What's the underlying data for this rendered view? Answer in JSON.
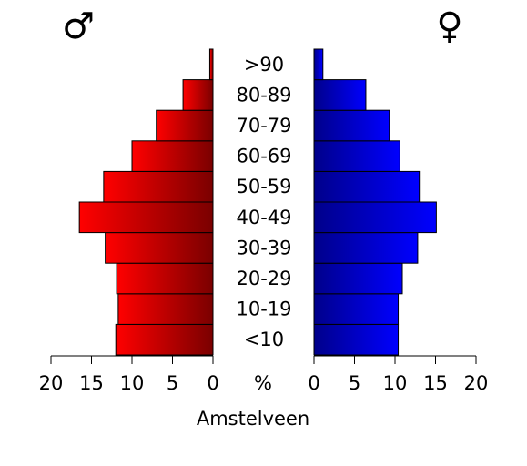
{
  "chart_data": {
    "type": "bar",
    "title": "Amstelveen",
    "xlabel": "%",
    "male_symbol": "♂",
    "female_symbol": "♀",
    "categories": [
      "<10",
      "10-19",
      "20-29",
      "30-39",
      "40-49",
      "50-59",
      "60-69",
      "70-79",
      "80-89",
      ">90"
    ],
    "series": [
      {
        "name": "♂",
        "values": [
          12.0,
          11.7,
          11.9,
          13.3,
          16.5,
          13.5,
          10.0,
          7.0,
          3.7,
          0.4
        ]
      },
      {
        "name": "♀",
        "values": [
          10.4,
          10.4,
          10.9,
          12.8,
          15.1,
          13.0,
          10.6,
          9.3,
          6.4,
          1.1
        ]
      }
    ],
    "xlim": [
      0,
      20
    ],
    "xticks": [
      "0",
      "5",
      "10",
      "15",
      "20"
    ],
    "colors": {
      "male_light": "#ff0000",
      "male_dark": "#7a0000",
      "female_dark": "#00008a",
      "female_light": "#0000ff"
    }
  }
}
